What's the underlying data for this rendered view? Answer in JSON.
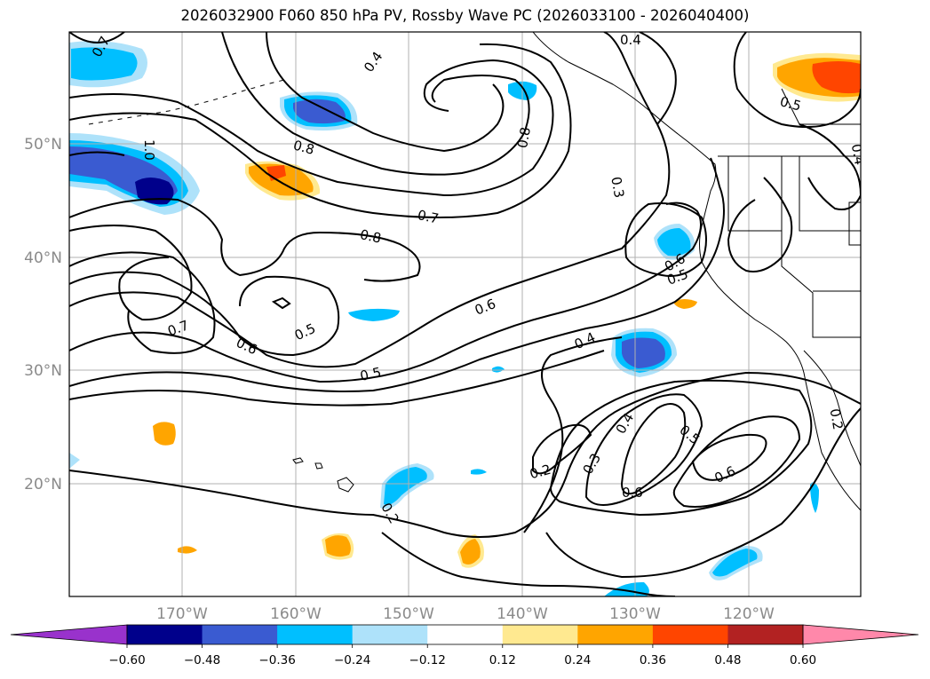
{
  "title": "2026032900 F060 850 hPa PV, Rossby Wave PC (2026033100 - 2026040400)",
  "axes": {
    "lat_labels": [
      "50°N",
      "40°N",
      "30°N",
      "20°N"
    ],
    "lon_labels": [
      "170°W",
      "160°W",
      "150°W",
      "140°W",
      "130°W",
      "120°W"
    ]
  },
  "colorbar": {
    "ticks": [
      "−0.60",
      "−0.48",
      "−0.36",
      "−0.24",
      "−0.12",
      "0.12",
      "0.24",
      "0.36",
      "0.48",
      "0.60"
    ],
    "colors": [
      "#9932cc",
      "#00008b",
      "#3a5bd1",
      "#00bfff",
      "#aee2fa",
      "#ffffff",
      "#ffe990",
      "#ffa500",
      "#ff4500",
      "#b22222",
      "#ff88aa"
    ]
  },
  "contour_labels": [
    {
      "text": "0.4"
    },
    {
      "text": "0.7"
    },
    {
      "text": "0.4"
    },
    {
      "text": "0.5"
    },
    {
      "text": "0.8"
    },
    {
      "text": "0.8"
    },
    {
      "text": "1.0"
    },
    {
      "text": "0.3"
    },
    {
      "text": "0.7"
    },
    {
      "text": "0.8"
    },
    {
      "text": "0.6"
    },
    {
      "text": "0.5"
    },
    {
      "text": "0.6"
    },
    {
      "text": "0.7"
    },
    {
      "text": "0.5"
    },
    {
      "text": "0.6"
    },
    {
      "text": "0.4"
    },
    {
      "text": "0.5"
    },
    {
      "text": "0.4"
    },
    {
      "text": "0.3"
    },
    {
      "text": "0.2"
    },
    {
      "text": "0.5"
    },
    {
      "text": "0.6"
    },
    {
      "text": "0.6"
    },
    {
      "text": "0.2"
    },
    {
      "text": "0.2"
    },
    {
      "text": "0.4"
    }
  ]
}
